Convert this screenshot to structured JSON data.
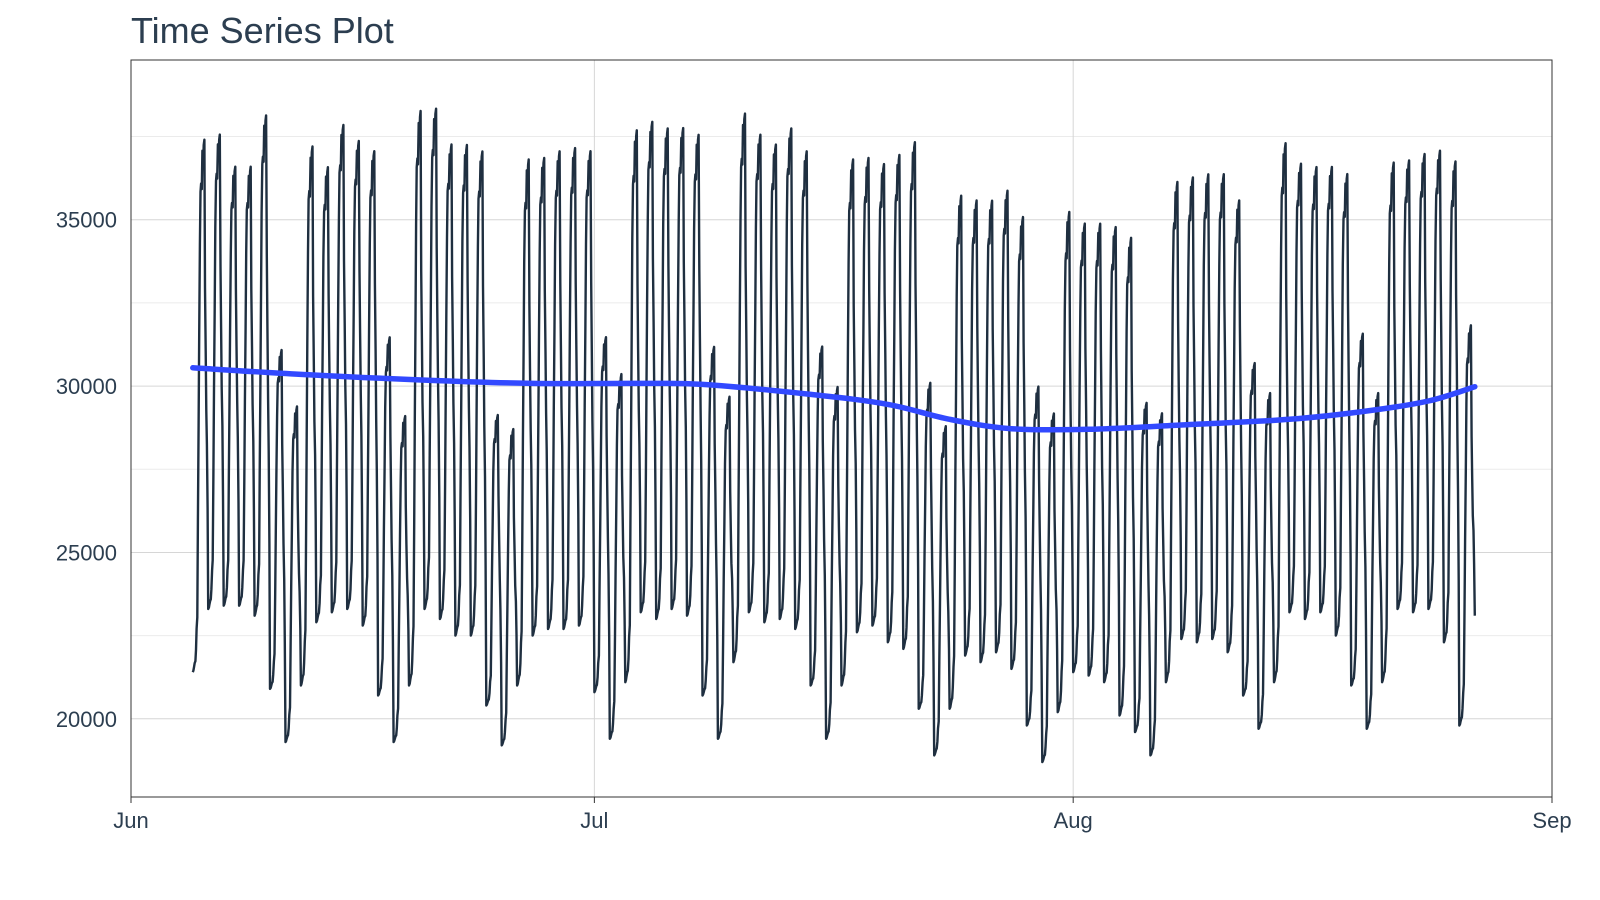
{
  "chart_data": {
    "type": "line",
    "title": "Time Series Plot",
    "xlabel": "",
    "ylabel": "",
    "x_axis": {
      "type": "date",
      "ticks": [
        "Jun",
        "Jul",
        "Aug",
        "Sep"
      ],
      "tick_dates": [
        "2012-06-01",
        "2012-07-01",
        "2012-08-01",
        "2012-09-01"
      ],
      "range": [
        "2012-06-01",
        "2012-09-01"
      ]
    },
    "y_axis": {
      "ticks": [
        20000,
        25000,
        30000,
        35000
      ],
      "tick_labels": [
        "20000",
        "25000",
        "30000",
        "35000"
      ],
      "range": [
        17650,
        39800
      ]
    },
    "grid": true,
    "series": [
      {
        "kind": "hourly",
        "color": "#1f2f40",
        "start": "2012-06-05T00:00",
        "step_hours": 1,
        "daily_peaks": [
          37900,
          38000,
          37000,
          37000,
          38600,
          31400,
          29700,
          37700,
          37000,
          38300,
          37800,
          37500,
          31800,
          29400,
          38800,
          38800,
          37700,
          37700,
          37500,
          29400,
          29000,
          37300,
          37300,
          37500,
          37600,
          37500,
          31800,
          30700,
          38200,
          38400,
          38200,
          38200,
          38000,
          31500,
          30000,
          38700,
          38000,
          37700,
          38200,
          37500,
          31500,
          30300,
          37300,
          37300,
          37100,
          37400,
          37800,
          30400,
          29100,
          36200,
          36000,
          36000,
          36300,
          35500,
          30300,
          29500,
          35700,
          35300,
          35300,
          35200,
          34900,
          29800,
          29500,
          36600,
          36700,
          36800,
          36800,
          36000,
          31000,
          30100,
          37800,
          37100,
          37000,
          37000,
          36800,
          31900,
          30100,
          37200,
          37200,
          37400,
          37500,
          37200,
          32200
        ],
        "daily_troughs": [
          21400,
          23300,
          23400,
          23400,
          23100,
          20900,
          19300,
          21000,
          22900,
          23200,
          23300,
          22800,
          20700,
          19300,
          21000,
          23300,
          23000,
          22500,
          22500,
          20400,
          19200,
          21000,
          22500,
          22700,
          22700,
          22800,
          20800,
          19400,
          21100,
          23200,
          23000,
          23300,
          23100,
          20700,
          19400,
          21700,
          23200,
          22900,
          23000,
          22700,
          21000,
          19400,
          21000,
          22600,
          22800,
          22300,
          22100,
          20300,
          18900,
          20300,
          21900,
          21700,
          22000,
          21500,
          19800,
          18700,
          20200,
          21400,
          21300,
          21100,
          20100,
          19600,
          18900,
          21100,
          22400,
          22300,
          22400,
          22000,
          20700,
          19700,
          21100,
          23200,
          23000,
          23200,
          22500,
          21000,
          19700,
          21100,
          23300,
          23200,
          23300,
          22300,
          19800
        ],
        "end_value": 23100
      },
      {
        "kind": "smooth",
        "color": "#3249ff",
        "points": [
          {
            "x": "2012-06-05",
            "y": 30550
          },
          {
            "x": "2012-06-12",
            "y": 30350
          },
          {
            "x": "2012-06-20",
            "y": 30180
          },
          {
            "x": "2012-06-27",
            "y": 30080
          },
          {
            "x": "2012-07-04",
            "y": 30080
          },
          {
            "x": "2012-07-08",
            "y": 30050
          },
          {
            "x": "2012-07-15",
            "y": 29750
          },
          {
            "x": "2012-07-20",
            "y": 29450
          },
          {
            "x": "2012-07-24",
            "y": 29000
          },
          {
            "x": "2012-07-28",
            "y": 28720
          },
          {
            "x": "2012-08-02",
            "y": 28700
          },
          {
            "x": "2012-08-08",
            "y": 28830
          },
          {
            "x": "2012-08-15",
            "y": 29000
          },
          {
            "x": "2012-08-20",
            "y": 29250
          },
          {
            "x": "2012-08-24",
            "y": 29550
          },
          {
            "x": "2012-08-27",
            "y": 29980
          }
        ]
      }
    ]
  }
}
